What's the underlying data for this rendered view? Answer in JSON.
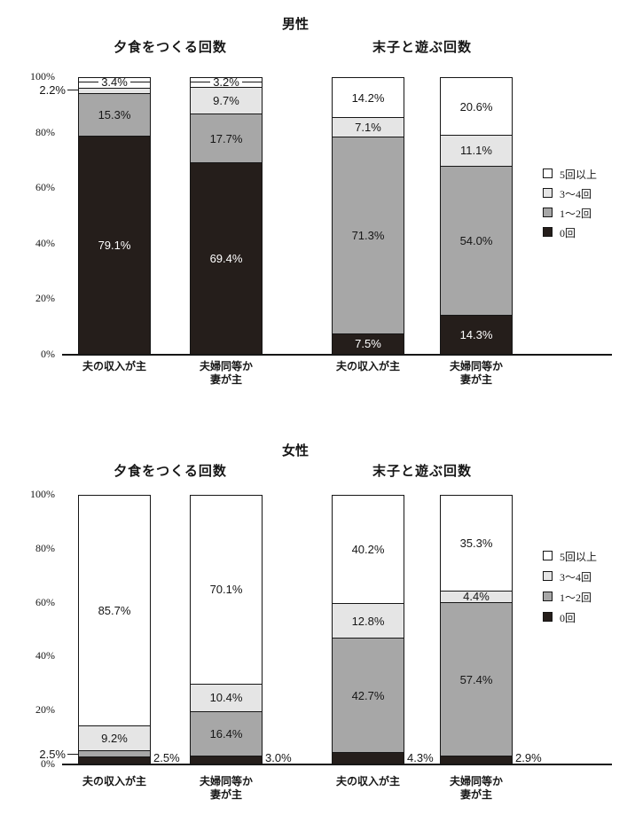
{
  "colors": {
    "black": "#251e1b",
    "gray": "#a7a7a7",
    "light_gray": "#e5e5e5",
    "white": "#ffffff",
    "border": "#161616"
  },
  "legend": {
    "items": [
      {
        "series": "5回以上",
        "label": "5回以上",
        "color_key": "white"
      },
      {
        "series": "3〜4回",
        "label": "3〜4回",
        "color_key": "light_gray"
      },
      {
        "series": "1〜2回",
        "label": "1〜2回",
        "color_key": "gray"
      },
      {
        "series": "0回",
        "label": "0回",
        "color_key": "black"
      }
    ]
  },
  "y_axis": {
    "ticks": [
      "100%",
      "80%",
      "60%",
      "40%",
      "20%",
      "0%"
    ],
    "tick_values": [
      100,
      80,
      60,
      40,
      20,
      0
    ]
  },
  "chart_data": [
    {
      "type": "bar",
      "stacked": true,
      "percent_scale": true,
      "panel_title": "男性",
      "ylim": [
        0,
        100
      ],
      "legend_position": "right",
      "groups": [
        {
          "title": "夕食をつくる回数",
          "bars": [
            {
              "category": "夫の収入が主",
              "category_lines": [
                "夫の収入が主"
              ],
              "segments": [
                {
                  "series": "0回",
                  "value": 79.1,
                  "label": "79.1%",
                  "placement": "inside"
                },
                {
                  "series": "1〜2回",
                  "value": 15.3,
                  "label": "15.3%",
                  "placement": "inside"
                },
                {
                  "series": "3〜4回",
                  "value": 2.2,
                  "label": "2.2%",
                  "placement": "left-leader"
                },
                {
                  "series": "5回以上",
                  "value": 3.4,
                  "label": "3.4%",
                  "placement": "top-leader"
                }
              ]
            },
            {
              "category": "夫婦同等か妻が主",
              "category_lines": [
                "夫婦同等か",
                "妻が主"
              ],
              "segments": [
                {
                  "series": "0回",
                  "value": 69.4,
                  "label": "69.4%",
                  "placement": "inside"
                },
                {
                  "series": "1〜2回",
                  "value": 17.7,
                  "label": "17.7%",
                  "placement": "inside"
                },
                {
                  "series": "3〜4回",
                  "value": 9.7,
                  "label": "9.7%",
                  "placement": "inside"
                },
                {
                  "series": "5回以上",
                  "value": 3.2,
                  "label": "3.2%",
                  "placement": "top-leader"
                }
              ]
            }
          ]
        },
        {
          "title": "末子と遊ぶ回数",
          "bars": [
            {
              "category": "夫の収入が主",
              "category_lines": [
                "夫の収入が主"
              ],
              "segments": [
                {
                  "series": "0回",
                  "value": 7.5,
                  "label": "7.5%",
                  "placement": "inside"
                },
                {
                  "series": "1〜2回",
                  "value": 71.3,
                  "label": "71.3%",
                  "placement": "inside"
                },
                {
                  "series": "3〜4回",
                  "value": 7.1,
                  "label": "7.1%",
                  "placement": "inside"
                },
                {
                  "series": "5回以上",
                  "value": 14.2,
                  "label": "14.2%",
                  "placement": "inside"
                }
              ]
            },
            {
              "category": "夫婦同等か妻が主",
              "category_lines": [
                "夫婦同等か",
                "妻が主"
              ],
              "segments": [
                {
                  "series": "0回",
                  "value": 14.3,
                  "label": "14.3%",
                  "placement": "inside"
                },
                {
                  "series": "1〜2回",
                  "value": 54.0,
                  "label": "54.0%",
                  "placement": "inside"
                },
                {
                  "series": "3〜4回",
                  "value": 11.1,
                  "label": "11.1%",
                  "placement": "inside"
                },
                {
                  "series": "5回以上",
                  "value": 20.6,
                  "label": "20.6%",
                  "placement": "inside"
                }
              ]
            }
          ]
        }
      ]
    },
    {
      "type": "bar",
      "stacked": true,
      "percent_scale": true,
      "panel_title": "女性",
      "ylim": [
        0,
        100
      ],
      "legend_position": "right",
      "groups": [
        {
          "title": "夕食をつくる回数",
          "bars": [
            {
              "category": "夫の収入が主",
              "category_lines": [
                "夫の収入が主"
              ],
              "segments": [
                {
                  "series": "0回",
                  "value": 2.5,
                  "label": "2.5%",
                  "placement": "right"
                },
                {
                  "series": "1〜2回",
                  "value": 2.5,
                  "label": "2.5%",
                  "placement": "left-leader"
                },
                {
                  "series": "3〜4回",
                  "value": 9.2,
                  "label": "9.2%",
                  "placement": "inside"
                },
                {
                  "series": "5回以上",
                  "value": 85.7,
                  "label": "85.7%",
                  "placement": "inside"
                }
              ]
            },
            {
              "category": "夫婦同等か妻が主",
              "category_lines": [
                "夫婦同等か",
                "妻が主"
              ],
              "segments": [
                {
                  "series": "0回",
                  "value": 3.0,
                  "label": "3.0%",
                  "placement": "right"
                },
                {
                  "series": "1〜2回",
                  "value": 16.4,
                  "label": "16.4%",
                  "placement": "inside"
                },
                {
                  "series": "3〜4回",
                  "value": 10.4,
                  "label": "10.4%",
                  "placement": "inside"
                },
                {
                  "series": "5回以上",
                  "value": 70.1,
                  "label": "70.1%",
                  "placement": "inside"
                }
              ]
            }
          ]
        },
        {
          "title": "末子と遊ぶ回数",
          "bars": [
            {
              "category": "夫の収入が主",
              "category_lines": [
                "夫の収入が主"
              ],
              "segments": [
                {
                  "series": "0回",
                  "value": 4.3,
                  "label": "4.3%",
                  "placement": "right"
                },
                {
                  "series": "1〜2回",
                  "value": 42.7,
                  "label": "42.7%",
                  "placement": "inside"
                },
                {
                  "series": "3〜4回",
                  "value": 12.8,
                  "label": "12.8%",
                  "placement": "inside"
                },
                {
                  "series": "5回以上",
                  "value": 40.2,
                  "label": "40.2%",
                  "placement": "inside"
                }
              ]
            },
            {
              "category": "夫婦同等か妻が主",
              "category_lines": [
                "夫婦同等か",
                "妻が主"
              ],
              "segments": [
                {
                  "series": "0回",
                  "value": 2.9,
                  "label": "2.9%",
                  "placement": "right"
                },
                {
                  "series": "1〜2回",
                  "value": 57.4,
                  "label": "57.4%",
                  "placement": "inside"
                },
                {
                  "series": "3〜4回",
                  "value": 4.4,
                  "label": "4.4%",
                  "placement": "inside"
                },
                {
                  "series": "5回以上",
                  "value": 35.3,
                  "label": "35.3%",
                  "placement": "inside"
                }
              ]
            }
          ]
        }
      ]
    }
  ]
}
